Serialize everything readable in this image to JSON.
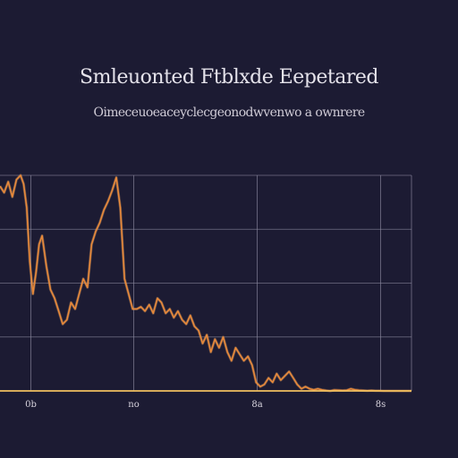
{
  "header": {
    "title": "Smleuonted Ftblxde Eepetared",
    "subtitle": "Oimeceuoeaceyclecgeonodwvenwo a ownrere"
  },
  "colors": {
    "background": "#1c1b33",
    "line": "#e8893a",
    "line_highlight": "#f4b06a",
    "grid": "#8c8aa0",
    "axis": "#f0c060"
  },
  "chart_data": {
    "type": "line",
    "title": "Smleuonted Ftblxde Eepetared",
    "subtitle": "Oimeceuoeaceyclecgeonodwvenwo a ownrere",
    "xlabel": "",
    "ylabel": "",
    "xlim": [
      0,
      40
    ],
    "ylim": [
      0,
      100
    ],
    "grid": true,
    "x_ticks": [
      {
        "value": 3,
        "label": "0b"
      },
      {
        "value": 13,
        "label": "no"
      },
      {
        "value": 25,
        "label": "8a"
      },
      {
        "value": 37,
        "label": "8s"
      }
    ],
    "series": [
      {
        "x": [
          0,
          0.4,
          0.8,
          1.2,
          1.6,
          2.0,
          2.3,
          2.6,
          2.9,
          3.2,
          3.5,
          3.8,
          4.1,
          4.5,
          4.9,
          5.3,
          5.7,
          6.1,
          6.5,
          6.9,
          7.3,
          7.7,
          8.1,
          8.5,
          8.9,
          9.3,
          9.7,
          10.1,
          10.5,
          10.9,
          11.3,
          11.7,
          12.1,
          12.5,
          12.9,
          13.3,
          13.7,
          14.1,
          14.5,
          14.9,
          15.3,
          15.7,
          16.1,
          16.5,
          16.9,
          17.3,
          17.7,
          18.1,
          18.5,
          18.9,
          19.3,
          19.7,
          20.1,
          20.5,
          20.9,
          21.3,
          21.7,
          22.1,
          22.5,
          22.9,
          23.3,
          23.7,
          24.1,
          24.5,
          24.9,
          25.3,
          25.7,
          26.1,
          26.5,
          26.9,
          27.3,
          27.7,
          28.1,
          28.5,
          28.9,
          29.3,
          29.7,
          30.1,
          30.5,
          30.9,
          31.3,
          31.7,
          32.1,
          32.5,
          32.9,
          33.3,
          33.7,
          34.1,
          34.5,
          34.9,
          35.3,
          35.7,
          36.1,
          36.5,
          36.9,
          37.3,
          37.7,
          38.1,
          38.5,
          38.9,
          39.3,
          39.7,
          40.0
        ],
        "y": [
          95,
          92,
          97,
          90,
          98,
          100,
          96,
          85,
          60,
          45,
          55,
          68,
          72,
          58,
          47,
          43,
          37,
          31,
          33,
          41,
          38,
          45,
          52,
          48,
          68,
          74,
          78,
          84,
          88,
          93,
          99,
          85,
          52,
          45,
          38,
          38,
          39,
          37,
          40,
          36,
          43,
          41,
          36,
          38,
          34,
          37,
          33,
          31,
          35,
          30,
          28,
          22,
          26,
          18,
          24,
          20,
          25,
          18,
          14,
          20,
          17,
          14,
          16,
          12,
          4,
          2,
          3,
          6,
          4,
          8,
          5,
          7,
          9,
          6,
          3,
          1,
          2,
          1,
          0.5,
          1,
          0.5,
          0.2,
          0,
          0.4,
          0.3,
          0.2,
          0.3,
          1,
          0.5,
          0.3,
          0.2,
          0.1,
          0.2,
          0.1,
          0.1,
          0,
          0,
          0,
          0,
          0,
          0,
          0,
          0
        ]
      }
    ]
  }
}
